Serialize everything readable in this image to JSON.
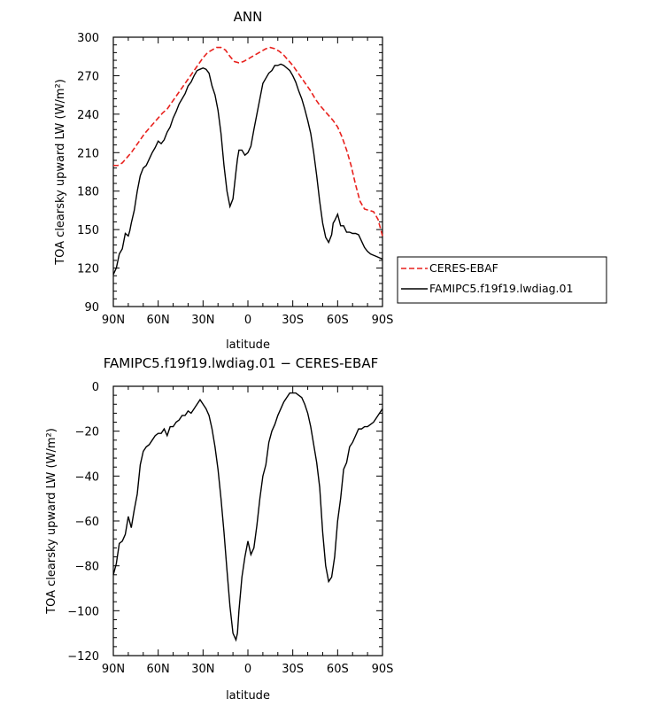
{
  "chart_data": [
    {
      "type": "line",
      "title": "ANN",
      "xlabel": "latitude",
      "ylabel": "TOA clearsky upward LW (W/m²)",
      "xlim": [
        -90,
        90
      ],
      "ylim": [
        90,
        300
      ],
      "xticks": [
        -90,
        -60,
        -30,
        0,
        30,
        60,
        90
      ],
      "xtick_labels": [
        "90N",
        "60N",
        "30N",
        "0",
        "30S",
        "60S",
        "90S"
      ],
      "yticks": [
        90,
        120,
        150,
        180,
        210,
        240,
        270,
        300
      ],
      "ytick_labels": [
        "90",
        "120",
        "150",
        "180",
        "210",
        "240",
        "270",
        "300"
      ],
      "grid": false,
      "legend_position": "right",
      "series": [
        {
          "name": "CERES-EBAF",
          "color": "#e8211d",
          "dash": "dashed",
          "x": [
            -90,
            -87,
            -84,
            -81,
            -78,
            -75,
            -72,
            -69,
            -66,
            -63,
            -60,
            -57,
            -54,
            -51,
            -48,
            -45,
            -42,
            -39,
            -36,
            -33,
            -30,
            -27,
            -24,
            -21,
            -18,
            -15,
            -12,
            -9,
            -6,
            -3,
            0,
            3,
            6,
            9,
            12,
            15,
            18,
            21,
            24,
            27,
            30,
            33,
            36,
            39,
            42,
            45,
            48,
            51,
            54,
            57,
            60,
            63,
            66,
            69,
            72,
            75,
            78,
            81,
            84,
            87,
            90
          ],
          "y": [
            200,
            200,
            202,
            206,
            210,
            215,
            220,
            225,
            229,
            233,
            237,
            241,
            244,
            249,
            254,
            259,
            264,
            269,
            274,
            279,
            284,
            288,
            290,
            292,
            292,
            290,
            285,
            281,
            280,
            281,
            283,
            285,
            287,
            289,
            291,
            292,
            291,
            289,
            286,
            282,
            278,
            273,
            268,
            263,
            258,
            252,
            247,
            243,
            239,
            235,
            230,
            222,
            212,
            200,
            185,
            172,
            166,
            165,
            164,
            158,
            145
          ]
        },
        {
          "name": "FAMIPC5.f19f19.lwdiag.01",
          "color": "#000000",
          "dash": "solid",
          "x": [
            -90,
            -88,
            -86,
            -84,
            -82,
            -80,
            -79,
            -78,
            -76,
            -74,
            -72,
            -70,
            -68,
            -66,
            -64,
            -62,
            -60,
            -58,
            -56,
            -54,
            -52,
            -50,
            -48,
            -46,
            -44,
            -42,
            -40,
            -38,
            -36,
            -34,
            -32,
            -30,
            -28,
            -26,
            -24,
            -22,
            -20,
            -18,
            -16,
            -14,
            -12,
            -10,
            -8,
            -7,
            -6,
            -4,
            -2,
            0,
            2,
            4,
            6,
            8,
            10,
            12,
            14,
            16,
            18,
            20,
            22,
            24,
            26,
            28,
            30,
            32,
            34,
            36,
            38,
            40,
            42,
            44,
            46,
            48,
            50,
            52,
            54,
            56,
            57,
            58,
            60,
            62,
            64,
            66,
            68,
            70,
            72,
            74,
            76,
            78,
            80,
            82,
            84,
            86,
            88,
            90
          ],
          "y": [
            115,
            120,
            131,
            135,
            147,
            145,
            149,
            155,
            165,
            180,
            192,
            198,
            200,
            205,
            210,
            214,
            219,
            217,
            220,
            226,
            230,
            237,
            242,
            248,
            252,
            256,
            262,
            265,
            270,
            274,
            275,
            276,
            275,
            272,
            262,
            255,
            243,
            225,
            200,
            180,
            168,
            174,
            195,
            205,
            212,
            212,
            208,
            210,
            215,
            228,
            240,
            252,
            264,
            268,
            272,
            274,
            278,
            278,
            279,
            278,
            276,
            274,
            270,
            265,
            258,
            252,
            244,
            235,
            225,
            210,
            192,
            172,
            155,
            144,
            140,
            146,
            155,
            157,
            162,
            153,
            153,
            148,
            148,
            147,
            147,
            146,
            141,
            136,
            133,
            131,
            130,
            129,
            128,
            127
          ]
        }
      ]
    },
    {
      "type": "line",
      "title": "FAMIPC5.f19f19.lwdiag.01 − CERES-EBAF",
      "xlabel": "latitude",
      "ylabel": "TOA clearsky upward LW (W/m²)",
      "xlim": [
        -90,
        90
      ],
      "ylim": [
        -120,
        0
      ],
      "xticks": [
        -90,
        -60,
        -30,
        0,
        30,
        60,
        90
      ],
      "xtick_labels": [
        "90N",
        "60N",
        "30N",
        "0",
        "30S",
        "60S",
        "90S"
      ],
      "yticks": [
        -120,
        -100,
        -80,
        -60,
        -40,
        -20,
        0
      ],
      "ytick_labels": [
        "−120",
        "−100",
        "−80",
        "−60",
        "−40",
        "−20",
        "0"
      ],
      "grid": false,
      "series": [
        {
          "color": "#000000",
          "dash": "solid",
          "x": [
            -90,
            -88,
            -86,
            -84,
            -82,
            -80,
            -78,
            -76,
            -74,
            -72,
            -70,
            -68,
            -66,
            -64,
            -62,
            -60,
            -58,
            -56,
            -54,
            -52,
            -50,
            -48,
            -46,
            -44,
            -42,
            -40,
            -38,
            -36,
            -34,
            -32,
            -30,
            -28,
            -26,
            -24,
            -22,
            -20,
            -18,
            -16,
            -14,
            -12,
            -10,
            -8,
            -7,
            -6,
            -4,
            -2,
            0,
            2,
            4,
            6,
            8,
            10,
            12,
            14,
            16,
            18,
            20,
            22,
            24,
            26,
            28,
            30,
            32,
            34,
            36,
            38,
            40,
            42,
            44,
            46,
            48,
            50,
            52,
            54,
            56,
            58,
            60,
            62,
            64,
            66,
            68,
            70,
            72,
            74,
            76,
            78,
            80,
            82,
            84,
            86,
            88,
            90
          ],
          "y": [
            -84,
            -79,
            -70,
            -69,
            -66,
            -58,
            -63,
            -55,
            -48,
            -35,
            -29,
            -27,
            -26,
            -24,
            -22,
            -21,
            -21,
            -19,
            -22,
            -18,
            -18,
            -16,
            -15,
            -13,
            -13,
            -11,
            -12,
            -10,
            -8,
            -6,
            -8,
            -10,
            -13,
            -19,
            -27,
            -37,
            -50,
            -65,
            -82,
            -98,
            -110,
            -113,
            -110,
            -100,
            -85,
            -76,
            -69,
            -75,
            -72,
            -62,
            -50,
            -40,
            -35,
            -25,
            -20,
            -17,
            -13,
            -10,
            -7,
            -5,
            -3,
            -3,
            -3,
            -4,
            -5,
            -8,
            -12,
            -18,
            -26,
            -34,
            -45,
            -65,
            -80,
            -87,
            -85,
            -76,
            -60,
            -50,
            -37,
            -34,
            -27,
            -25,
            -22,
            -19,
            -19,
            -18,
            -18,
            -17,
            -16,
            -14,
            -12,
            -10
          ]
        }
      ]
    }
  ]
}
